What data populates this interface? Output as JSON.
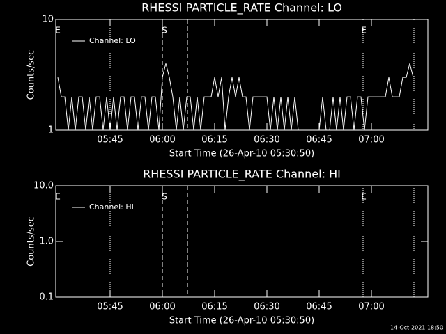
{
  "chart_data": [
    {
      "type": "line",
      "title": "RHESSI PARTICLE_RATE Channel: LO",
      "xlabel": "Start Time (26-Apr-10 05:30:50)",
      "ylabel": "Counts/sec",
      "log_y": true,
      "xlim": [
        329.4,
        436.2
      ],
      "ylim": [
        1,
        10
      ],
      "yticks": [
        1,
        10
      ],
      "xticks": [
        {
          "value": 345,
          "label": "05:45"
        },
        {
          "value": 360,
          "label": "06:00"
        },
        {
          "value": 375,
          "label": "06:15"
        },
        {
          "value": 390,
          "label": "06:30"
        },
        {
          "value": 405,
          "label": "06:45"
        },
        {
          "value": 420,
          "label": "07:00"
        }
      ],
      "markers": [
        {
          "x": 345,
          "style": "dotted"
        },
        {
          "x": 360,
          "style": "dashed"
        },
        {
          "x": 367.2,
          "style": "dashed"
        },
        {
          "x": 417.6,
          "style": "dotted"
        },
        {
          "x": 432.2,
          "style": "dotted"
        }
      ],
      "flags": [
        {
          "label": "E",
          "x": 330
        },
        {
          "label": "S",
          "x": 360.6
        },
        {
          "label": "E",
          "x": 417.8
        }
      ],
      "series": [
        {
          "name": "Channel: LO",
          "color": "#ffffff",
          "x": [
            330,
            331,
            332,
            333,
            334,
            335,
            336,
            337,
            338,
            339,
            340,
            341,
            342,
            343,
            344,
            345,
            346,
            347,
            348,
            349,
            350,
            351,
            352,
            353,
            354,
            355,
            356,
            357,
            358,
            359,
            360,
            361,
            362,
            363,
            364,
            365,
            366,
            367,
            368,
            369,
            370,
            371,
            372,
            373,
            374,
            375,
            376,
            377,
            378,
            379,
            380,
            381,
            382,
            383,
            384,
            385,
            386,
            387,
            388,
            389,
            390,
            391,
            392,
            393,
            394,
            395,
            396,
            397,
            398,
            399,
            400,
            401,
            402,
            403,
            404,
            405,
            406,
            407,
            408,
            409,
            410,
            411,
            412,
            413,
            414,
            415,
            416,
            417,
            418,
            419,
            420,
            421,
            422,
            423,
            424,
            425,
            426,
            427,
            428,
            429,
            430,
            431,
            432
          ],
          "values": [
            3,
            2,
            2,
            1,
            2,
            1,
            2,
            2,
            1,
            2,
            1,
            2,
            2,
            1,
            2,
            1,
            2,
            1,
            2,
            2,
            1,
            2,
            2,
            1,
            2,
            2,
            1,
            2,
            2,
            1,
            3,
            4,
            3,
            2,
            1,
            2,
            1,
            2,
            2,
            1,
            2,
            1,
            2,
            2,
            2,
            3,
            2,
            3,
            1,
            2,
            3,
            2,
            3,
            2,
            2,
            1,
            2,
            2,
            2,
            2,
            2,
            1,
            2,
            1,
            2,
            1,
            2,
            1,
            2,
            1,
            1,
            1,
            1,
            1,
            1,
            1,
            2,
            1,
            1,
            2,
            1,
            2,
            1,
            2,
            2,
            1,
            2,
            2,
            1,
            2,
            2,
            2,
            2,
            2,
            2,
            3,
            2,
            2,
            2,
            3,
            3,
            4,
            3
          ]
        }
      ],
      "legend": "upper left"
    },
    {
      "type": "line",
      "title": "RHESSI PARTICLE_RATE Channel: HI",
      "xlabel": "Start Time (26-Apr-10 05:30:50)",
      "ylabel": "Counts/sec",
      "log_y": true,
      "xlim": [
        329.4,
        436.2
      ],
      "ylim": [
        0.1,
        10
      ],
      "yticks": [
        0.1,
        {
          "value": 1,
          "label": "1.0"
        },
        {
          "value": 10,
          "label": "10.0"
        }
      ],
      "xticks": [
        {
          "value": 345,
          "label": "05:45"
        },
        {
          "value": 360,
          "label": "06:00"
        },
        {
          "value": 375,
          "label": "06:15"
        },
        {
          "value": 390,
          "label": "06:30"
        },
        {
          "value": 405,
          "label": "06:45"
        },
        {
          "value": 420,
          "label": "07:00"
        }
      ],
      "markers": [
        {
          "x": 345,
          "style": "dotted"
        },
        {
          "x": 360,
          "style": "dashed"
        },
        {
          "x": 367.2,
          "style": "dashed"
        },
        {
          "x": 417.6,
          "style": "dotted"
        },
        {
          "x": 432.2,
          "style": "dotted"
        }
      ],
      "flags": [
        {
          "label": "E",
          "x": 330
        },
        {
          "label": "S",
          "x": 360.6
        },
        {
          "label": "E",
          "x": 417.8
        }
      ],
      "series": [
        {
          "name": "Channel: HI",
          "color": "#ffffff",
          "x": [],
          "values": []
        }
      ],
      "legend": "upper left"
    }
  ],
  "timestamp": "14-Oct-2021 18:50"
}
